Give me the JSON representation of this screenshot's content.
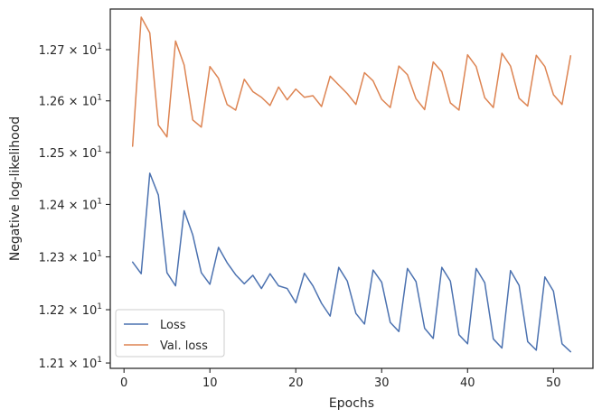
{
  "chart_data": {
    "type": "line",
    "title": "",
    "xlabel": "Epochs",
    "ylabel": "Negative log-likelihood",
    "xlim": [
      -1.6,
      54.6
    ],
    "ylim": [
      12.09,
      12.78
    ],
    "x": [
      1,
      2,
      3,
      4,
      5,
      6,
      7,
      8,
      9,
      10,
      11,
      12,
      13,
      14,
      15,
      16,
      17,
      18,
      19,
      20,
      21,
      22,
      23,
      24,
      25,
      26,
      27,
      28,
      29,
      30,
      31,
      32,
      33,
      34,
      35,
      36,
      37,
      38,
      39,
      40,
      41,
      42,
      43,
      44,
      45,
      46,
      47,
      48,
      49,
      50,
      51,
      52
    ],
    "xticks": [
      0,
      10,
      20,
      30,
      40,
      50
    ],
    "xtick_labels": [
      "0",
      "10",
      "20",
      "30",
      "40",
      "50"
    ],
    "yticks": [
      12.1,
      12.2,
      12.3,
      12.4,
      12.5,
      12.6,
      12.7
    ],
    "ytick_labels": [
      {
        "base": "1.21 × 10",
        "exp": "1"
      },
      {
        "base": "1.22 × 10",
        "exp": "1"
      },
      {
        "base": "1.23 × 10",
        "exp": "1"
      },
      {
        "base": "1.24 × 10",
        "exp": "1"
      },
      {
        "base": "1.25 × 10",
        "exp": "1"
      },
      {
        "base": "1.26 × 10",
        "exp": "1"
      },
      {
        "base": "1.27 × 10",
        "exp": "1"
      }
    ],
    "log_scale_y": true,
    "grid": false,
    "legend_position": "lower-left",
    "series": [
      {
        "name": "Loss",
        "color": "#4c72b0",
        "values": [
          12.29,
          12.268,
          12.46,
          12.418,
          12.27,
          12.245,
          12.388,
          12.342,
          12.27,
          12.248,
          12.318,
          12.289,
          12.266,
          12.249,
          12.265,
          12.24,
          12.268,
          12.245,
          12.24,
          12.213,
          12.269,
          12.245,
          12.212,
          12.188,
          12.28,
          12.254,
          12.193,
          12.173,
          12.275,
          12.252,
          12.176,
          12.159,
          12.278,
          12.253,
          12.165,
          12.146,
          12.28,
          12.254,
          12.153,
          12.136,
          12.278,
          12.251,
          12.145,
          12.128,
          12.274,
          12.246,
          12.14,
          12.124,
          12.262,
          12.235,
          12.136,
          12.121
        ]
      },
      {
        "name": "Val. loss",
        "color": "#dd8452",
        "values": [
          12.512,
          12.764,
          12.733,
          12.553,
          12.53,
          12.717,
          12.67,
          12.563,
          12.549,
          12.667,
          12.644,
          12.593,
          12.582,
          12.642,
          12.618,
          12.607,
          12.591,
          12.627,
          12.602,
          12.623,
          12.607,
          12.61,
          12.589,
          12.648,
          12.631,
          12.614,
          12.593,
          12.655,
          12.639,
          12.603,
          12.587,
          12.668,
          12.651,
          12.604,
          12.583,
          12.676,
          12.657,
          12.596,
          12.582,
          12.69,
          12.667,
          12.606,
          12.587,
          12.693,
          12.668,
          12.605,
          12.59,
          12.689,
          12.667,
          12.612,
          12.593,
          12.688
        ]
      }
    ]
  }
}
